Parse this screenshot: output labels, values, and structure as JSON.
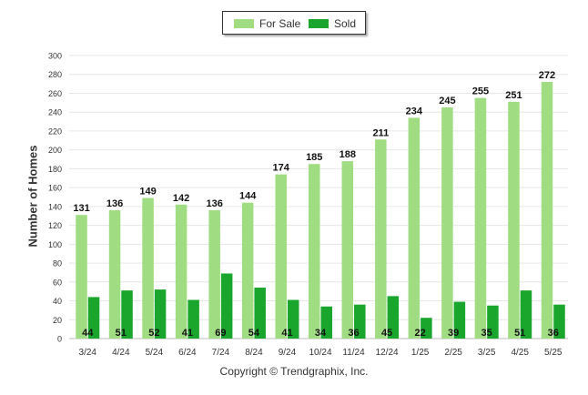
{
  "legend": [
    {
      "label": "For Sale",
      "color": "#a0dc82"
    },
    {
      "label": "Sold",
      "color": "#1aa52c"
    }
  ],
  "copyright": "Copyright © Trendgraphix, Inc.",
  "chart_data": {
    "type": "bar",
    "title": "",
    "xlabel": "",
    "ylabel": "Number of Homes",
    "ylim": [
      0,
      300
    ],
    "yticks": [
      0,
      20,
      40,
      60,
      80,
      100,
      120,
      140,
      160,
      180,
      200,
      220,
      240,
      260,
      280,
      300
    ],
    "grid": true,
    "legend_position": "top-center",
    "categories": [
      "3/24",
      "4/24",
      "5/24",
      "6/24",
      "7/24",
      "8/24",
      "9/24",
      "10/24",
      "11/24",
      "12/24",
      "1/25",
      "2/25",
      "3/25",
      "4/25",
      "5/25"
    ],
    "series": [
      {
        "name": "For Sale",
        "color": "#a0dc82",
        "values": [
          131,
          136,
          149,
          142,
          136,
          144,
          174,
          185,
          188,
          211,
          234,
          245,
          255,
          251,
          272
        ]
      },
      {
        "name": "Sold",
        "color": "#1aa52c",
        "values": [
          44,
          51,
          52,
          41,
          69,
          54,
          41,
          34,
          36,
          45,
          22,
          39,
          35,
          51,
          36
        ]
      }
    ]
  }
}
